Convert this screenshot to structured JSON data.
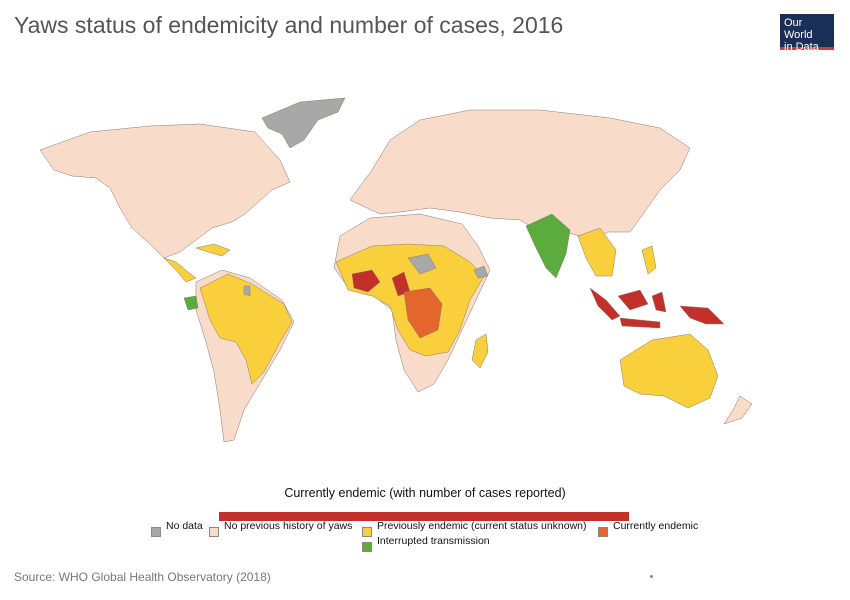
{
  "title": "Yaws status of endemicity and number of cases, 2016",
  "logo": {
    "line1": "Our World",
    "line2": "in Data"
  },
  "legend": {
    "heading": "Currently endemic (with number of cases reported)",
    "items": [
      {
        "label": "No data",
        "color": "#a8a8a8"
      },
      {
        "label": "No previous history of yaws",
        "color": "#f8dcc9"
      },
      {
        "label": "Previously endemic (current status unknown)",
        "color": "#f9cf3c"
      },
      {
        "label": "Currently endemic",
        "color": "#e5662c"
      },
      {
        "label": "Interrupted transmission",
        "color": "#5bac3d"
      }
    ],
    "bar_color": "#c3302a"
  },
  "source": "Source: WHO Global Health Observatory (2018)",
  "colors": {
    "no_data": "#a8a8a8",
    "no_history": "#f8dcc9",
    "previously_endemic": "#f9cf3c",
    "currently_endemic": "#e5662c",
    "endemic_high": "#c3302a",
    "interrupted": "#5bac3d"
  }
}
